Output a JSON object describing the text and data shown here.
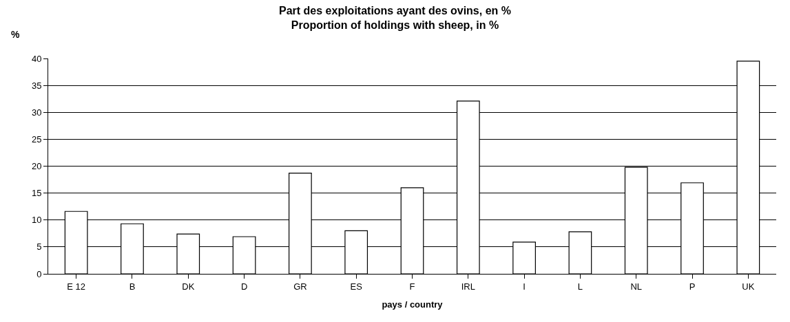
{
  "chart_data": {
    "type": "bar",
    "title": "Part des exploitations ayant des ovins, en %\nProportion of holdings with sheep, in %",
    "ylabel": "%",
    "xlabel": "pays / country",
    "categories": [
      "E 12",
      "B",
      "DK",
      "D",
      "GR",
      "ES",
      "F",
      "IRL",
      "I",
      "L",
      "NL",
      "P",
      "UK"
    ],
    "values": [
      11.6,
      9.3,
      7.4,
      6.9,
      18.7,
      8.0,
      16.0,
      32.1,
      5.9,
      7.8,
      19.8,
      16.9,
      39.5
    ],
    "color": "#ffffff",
    "ylim": [
      0,
      40
    ],
    "yticks": [
      0,
      5,
      10,
      15,
      20,
      25,
      30,
      35,
      40
    ],
    "grid": "y"
  }
}
